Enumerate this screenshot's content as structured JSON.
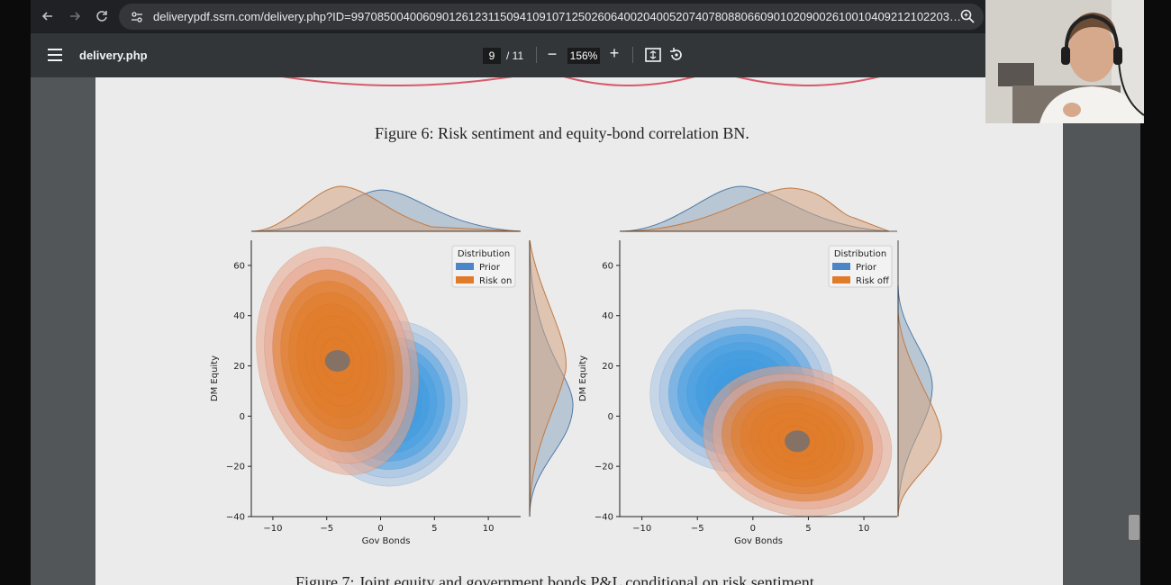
{
  "browser": {
    "url": "deliverypdf.ssrn.com/delivery.php?ID=99708500400609012612311509410910712502606400204005207407808806609010209002610010409212102203811811401411608..."
  },
  "pdf_toolbar": {
    "title": "delivery.php",
    "current_page": "9",
    "total_pages": "/ 11",
    "zoom": "156%",
    "zoom_out_label": "−",
    "zoom_in_label": "+"
  },
  "document": {
    "figure6_caption": "Figure 6: Risk sentiment and equity-bond correlation BN.",
    "figure7_caption": "Figure 7: Joint equity and government bonds P&L conditional on risk sentiment."
  },
  "colors": {
    "prior": "#4a86c8",
    "risk": "#e07b2a",
    "risk_light": "#e8a58e",
    "page": "#ebebeb"
  },
  "chart_data": [
    {
      "type": "kde-joint",
      "xlabel": "Gov Bonds",
      "ylabel": "DM Equity",
      "xlim": [
        -12,
        13
      ],
      "ylim": [
        -40,
        70
      ],
      "xticks": [
        "−10",
        "−5",
        "0",
        "5",
        "10"
      ],
      "yticks": [
        "60",
        "40",
        "20",
        "0",
        "−20",
        "−40"
      ],
      "legend_title": "Distribution",
      "legend_position": "top-right",
      "series": [
        {
          "name": "Prior",
          "center": [
            1,
            5
          ],
          "color": "#4a86c8"
        },
        {
          "name": "Risk on",
          "center": [
            -4,
            22
          ],
          "color": "#e07b2a"
        }
      ]
    },
    {
      "type": "kde-joint",
      "xlabel": "Gov Bonds",
      "ylabel": "DM Equity",
      "xlim": [
        -12,
        13
      ],
      "ylim": [
        -40,
        70
      ],
      "xticks": [
        "−10",
        "−5",
        "0",
        "5",
        "10"
      ],
      "yticks": [
        "60",
        "40",
        "20",
        "0",
        "−20",
        "−40"
      ],
      "legend_title": "Distribution",
      "legend_position": "top-right",
      "series": [
        {
          "name": "Prior",
          "center": [
            -1,
            10
          ],
          "color": "#4a86c8"
        },
        {
          "name": "Risk off",
          "center": [
            4,
            -10
          ],
          "color": "#e07b2a"
        }
      ]
    }
  ]
}
